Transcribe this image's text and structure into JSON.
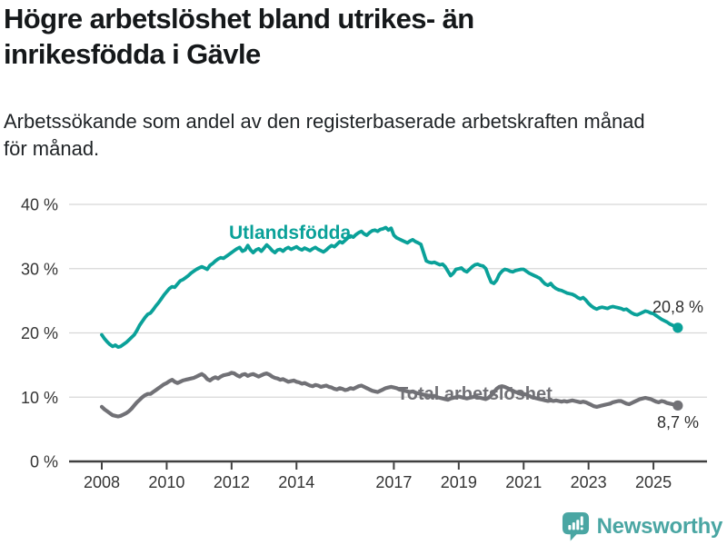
{
  "header": {
    "title_lines": [
      "Högre arbetslöshet bland utrikes- än",
      "inrikesfödda i Gävle"
    ],
    "subtitle_lines": [
      "Arbetssökande som andel av den registerbaserade arbetskraften månad",
      "för månad."
    ]
  },
  "footer": {
    "brand": "Newsworthy",
    "logo_icon": "newsworthy-speech-bubble-bar-chart-icon"
  },
  "colors": {
    "accent_teal": "#0aa199",
    "series_gray": "#717176",
    "brand_teal": "#4aa6a3",
    "grid": "#d8d8d8",
    "axis": "#404040",
    "tick_label": "#353535",
    "title_text": "#15181a",
    "value_label": "#2f2f2f"
  },
  "chart_data": {
    "type": "line",
    "unit": "%",
    "grid": true,
    "legend": "inline-series-labels",
    "ylim": [
      0,
      41
    ],
    "x_start_year": 2008,
    "x_step_months": 1,
    "x_ticks": [
      "2008",
      "2010",
      "2012",
      "2014",
      "2017",
      "2019",
      "2021",
      "2023",
      "2025"
    ],
    "y_ticks": [
      {
        "value": 40,
        "label": "40 %"
      },
      {
        "value": 30,
        "label": "30 %"
      },
      {
        "value": 20,
        "label": "20 %"
      },
      {
        "value": 10,
        "label": "10 %"
      },
      {
        "value": 0,
        "label": "0 %"
      }
    ],
    "series": [
      {
        "name": "Utlandsfödda",
        "color": "#0aa199",
        "end_label": "20,8 %",
        "end_value": 20.8,
        "values": [
          19.7,
          19.1,
          18.6,
          18.2,
          17.9,
          18.1,
          17.8,
          17.9,
          18.2,
          18.5,
          18.9,
          19.3,
          19.7,
          20.4,
          21.2,
          21.8,
          22.4,
          22.9,
          23.1,
          23.6,
          24.2,
          24.7,
          25.3,
          25.9,
          26.4,
          26.9,
          27.2,
          27.1,
          27.6,
          28.1,
          28.3,
          28.6,
          28.9,
          29.3,
          29.6,
          29.9,
          30.1,
          30.3,
          30.1,
          29.9,
          30.5,
          30.8,
          31.2,
          31.5,
          31.7,
          31.6,
          31.9,
          32.2,
          32.5,
          32.8,
          33.1,
          33.3,
          32.7,
          32.9,
          33.6,
          32.9,
          32.5,
          32.9,
          33.1,
          32.7,
          33.2,
          33.7,
          33.3,
          32.8,
          32.5,
          32.9,
          33.0,
          32.7,
          33.1,
          33.3,
          33.0,
          33.2,
          33.4,
          33.1,
          32.9,
          33.2,
          33.0,
          32.8,
          33.1,
          33.3,
          33.0,
          32.8,
          32.6,
          32.9,
          33.3,
          33.6,
          33.4,
          33.8,
          34.2,
          34.0,
          34.4,
          34.8,
          35.1,
          34.9,
          35.3,
          35.6,
          35.8,
          35.4,
          35.2,
          35.6,
          35.9,
          36.0,
          35.8,
          36.1,
          36.2,
          36.4,
          36.0,
          36.3,
          35.2,
          34.8,
          34.6,
          34.4,
          34.2,
          34.0,
          34.3,
          34.5,
          34.2,
          34.0,
          33.8,
          32.5,
          31.2,
          31.0,
          30.9,
          31.0,
          30.8,
          30.6,
          30.7,
          30.3,
          29.6,
          28.9,
          29.3,
          29.9,
          30.0,
          30.1,
          29.7,
          29.5,
          29.9,
          30.3,
          30.6,
          30.7,
          30.5,
          30.4,
          30.0,
          28.9,
          27.9,
          27.7,
          28.2,
          29.1,
          29.6,
          29.9,
          29.8,
          29.6,
          29.5,
          29.7,
          29.8,
          29.9,
          29.9,
          29.6,
          29.3,
          29.1,
          28.9,
          28.7,
          28.5,
          28.0,
          27.6,
          27.4,
          27.7,
          27.2,
          26.9,
          26.7,
          26.6,
          26.4,
          26.2,
          26.1,
          26.0,
          25.8,
          25.5,
          25.3,
          25.5,
          25.1,
          24.6,
          24.2,
          23.9,
          23.7,
          23.9,
          24.0,
          23.9,
          23.8,
          24.0,
          24.1,
          24.0,
          23.9,
          23.8,
          23.6,
          23.7,
          23.4,
          23.1,
          22.9,
          22.8,
          23.0,
          23.2,
          23.4,
          23.3,
          23.1,
          23.0,
          22.7,
          22.4,
          22.1,
          21.9,
          21.7,
          21.4,
          21.2,
          21.0,
          20.8
        ]
      },
      {
        "name": "Total arbetslöshet",
        "color": "#717176",
        "end_label": "8,7 %",
        "end_value": 8.7,
        "values": [
          8.5,
          8.1,
          7.8,
          7.5,
          7.2,
          7.1,
          7.0,
          7.1,
          7.3,
          7.5,
          7.8,
          8.2,
          8.7,
          9.2,
          9.6,
          10.0,
          10.3,
          10.5,
          10.5,
          10.8,
          11.1,
          11.4,
          11.7,
          12.0,
          12.2,
          12.5,
          12.7,
          12.4,
          12.2,
          12.4,
          12.6,
          12.7,
          12.8,
          12.9,
          13.0,
          13.2,
          13.4,
          13.6,
          13.3,
          12.8,
          12.6,
          12.9,
          13.1,
          12.9,
          13.2,
          13.4,
          13.5,
          13.6,
          13.8,
          13.7,
          13.4,
          13.2,
          13.5,
          13.6,
          13.3,
          13.5,
          13.6,
          13.4,
          13.2,
          13.4,
          13.6,
          13.7,
          13.5,
          13.2,
          13.0,
          12.9,
          12.7,
          12.8,
          12.6,
          12.4,
          12.5,
          12.6,
          12.4,
          12.3,
          12.1,
          12.2,
          12.0,
          11.8,
          11.7,
          11.9,
          11.8,
          11.6,
          11.7,
          11.8,
          11.6,
          11.5,
          11.3,
          11.2,
          11.4,
          11.3,
          11.1,
          11.2,
          11.4,
          11.3,
          11.5,
          11.7,
          11.8,
          11.6,
          11.4,
          11.2,
          11.0,
          10.9,
          10.8,
          11.0,
          11.2,
          11.4,
          11.5,
          11.6,
          11.5,
          11.4,
          11.2,
          11.1,
          11.0,
          10.9,
          10.8,
          10.9,
          10.7,
          10.6,
          10.5,
          10.4,
          10.3,
          10.2,
          10.1,
          10.2,
          10.0,
          9.9,
          9.8,
          9.7,
          9.6,
          9.8,
          9.9,
          10.0,
          10.1,
          10.0,
          9.9,
          9.8,
          9.9,
          10.0,
          10.1,
          10.0,
          9.9,
          9.8,
          9.7,
          9.9,
          10.3,
          10.8,
          11.3,
          11.6,
          11.7,
          11.6,
          11.4,
          11.2,
          11.0,
          10.8,
          10.7,
          10.6,
          10.5,
          10.4,
          10.2,
          10.0,
          9.9,
          9.8,
          9.7,
          9.6,
          9.5,
          9.4,
          9.5,
          9.4,
          9.5,
          9.4,
          9.3,
          9.4,
          9.3,
          9.4,
          9.5,
          9.4,
          9.3,
          9.2,
          9.3,
          9.2,
          9.0,
          8.8,
          8.6,
          8.5,
          8.6,
          8.7,
          8.8,
          8.9,
          9.0,
          9.2,
          9.3,
          9.4,
          9.4,
          9.2,
          9.0,
          8.9,
          9.1,
          9.3,
          9.5,
          9.7,
          9.8,
          9.9,
          9.8,
          9.7,
          9.5,
          9.3,
          9.2,
          9.4,
          9.3,
          9.1,
          9.0,
          8.9,
          8.8,
          8.7
        ]
      }
    ]
  }
}
